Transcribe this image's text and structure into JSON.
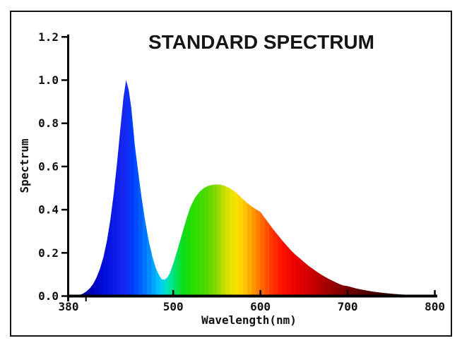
{
  "frame": {
    "background": "#ffffff",
    "border_color": "#141414",
    "axis_color": "#000000",
    "text_color": "#111111"
  },
  "chart_data": {
    "type": "area",
    "title": "STANDARD SPECTRUM",
    "xlabel": "Wavelength(nm)",
    "ylabel": "Spectrum",
    "xlim": [
      380,
      802
    ],
    "ylim": [
      0,
      1.2
    ],
    "x_tick_values": [
      380,
      500,
      600,
      700,
      800
    ],
    "x_tick_labels": [
      "380",
      "500",
      "600",
      "700",
      "800"
    ],
    "x_minor_ticks": [
      400
    ],
    "y_ticks": [
      0,
      0.2,
      0.4,
      0.6,
      0.8,
      1.0,
      1.2
    ],
    "grid": false,
    "legend": "none",
    "band_width_nm": 5,
    "series": [
      {
        "name": "standard-spectrum",
        "x": [
          388,
          392,
          396,
          400,
          404,
          408,
          412,
          416,
          420,
          424,
          428,
          432,
          436,
          440,
          443,
          446,
          449,
          452,
          456,
          460,
          464,
          468,
          472,
          476,
          480,
          484,
          487,
          490,
          493,
          496,
          500,
          505,
          510,
          515,
          520,
          525,
          530,
          535,
          540,
          545,
          550,
          555,
          560,
          565,
          570,
          575,
          580,
          585,
          590,
          595,
          600,
          605,
          610,
          615,
          620,
          625,
          630,
          635,
          640,
          645,
          650,
          655,
          660,
          665,
          670,
          675,
          680,
          685,
          690,
          695,
          700,
          710,
          720,
          730,
          740,
          750,
          760,
          770,
          780,
          790,
          802
        ],
        "y": [
          0.002,
          0.005,
          0.01,
          0.02,
          0.034,
          0.055,
          0.085,
          0.125,
          0.18,
          0.255,
          0.355,
          0.48,
          0.63,
          0.8,
          0.92,
          1.0,
          0.955,
          0.87,
          0.7,
          0.57,
          0.45,
          0.345,
          0.255,
          0.185,
          0.13,
          0.095,
          0.078,
          0.076,
          0.085,
          0.105,
          0.15,
          0.215,
          0.285,
          0.355,
          0.415,
          0.455,
          0.482,
          0.5,
          0.51,
          0.515,
          0.517,
          0.515,
          0.509,
          0.499,
          0.486,
          0.468,
          0.449,
          0.43,
          0.415,
          0.402,
          0.39,
          0.362,
          0.335,
          0.308,
          0.283,
          0.258,
          0.235,
          0.212,
          0.192,
          0.175,
          0.158,
          0.141,
          0.126,
          0.112,
          0.099,
          0.087,
          0.076,
          0.066,
          0.057,
          0.049,
          0.046,
          0.035,
          0.027,
          0.02,
          0.015,
          0.011,
          0.008,
          0.006,
          0.0045,
          0.003,
          0.002
        ]
      }
    ],
    "spectral_gradient_stops": [
      {
        "wl": 390,
        "color": "#000085"
      },
      {
        "wl": 402,
        "color": "#0000a8"
      },
      {
        "wl": 415,
        "color": "#0008d0"
      },
      {
        "wl": 430,
        "color": "#0a18e6"
      },
      {
        "wl": 445,
        "color": "#1a28f0"
      },
      {
        "wl": 452,
        "color": "#0038ff"
      },
      {
        "wl": 460,
        "color": "#0055ff"
      },
      {
        "wl": 468,
        "color": "#0077ff"
      },
      {
        "wl": 476,
        "color": "#009dff"
      },
      {
        "wl": 484,
        "color": "#00c4fa"
      },
      {
        "wl": 490,
        "color": "#00dddd"
      },
      {
        "wl": 497,
        "color": "#00e49a"
      },
      {
        "wl": 504,
        "color": "#00e254"
      },
      {
        "wl": 512,
        "color": "#0ede16"
      },
      {
        "wl": 522,
        "color": "#2ade00"
      },
      {
        "wl": 534,
        "color": "#44da00"
      },
      {
        "wl": 545,
        "color": "#70d800"
      },
      {
        "wl": 556,
        "color": "#b4dc00"
      },
      {
        "wl": 566,
        "color": "#e8e400"
      },
      {
        "wl": 574,
        "color": "#fcdf00"
      },
      {
        "wl": 582,
        "color": "#ffc300"
      },
      {
        "wl": 590,
        "color": "#ffa000"
      },
      {
        "wl": 598,
        "color": "#ff7a00"
      },
      {
        "wl": 606,
        "color": "#ff5500"
      },
      {
        "wl": 614,
        "color": "#ff3300"
      },
      {
        "wl": 624,
        "color": "#ff1500"
      },
      {
        "wl": 635,
        "color": "#f30300"
      },
      {
        "wl": 648,
        "color": "#e00000"
      },
      {
        "wl": 660,
        "color": "#c80000"
      },
      {
        "wl": 672,
        "color": "#ae0000"
      },
      {
        "wl": 684,
        "color": "#930000"
      },
      {
        "wl": 698,
        "color": "#780000"
      },
      {
        "wl": 712,
        "color": "#5e0000"
      },
      {
        "wl": 728,
        "color": "#470000"
      },
      {
        "wl": 748,
        "color": "#310000"
      },
      {
        "wl": 768,
        "color": "#210000"
      },
      {
        "wl": 788,
        "color": "#150000"
      },
      {
        "wl": 802,
        "color": "#0e0000"
      }
    ]
  }
}
